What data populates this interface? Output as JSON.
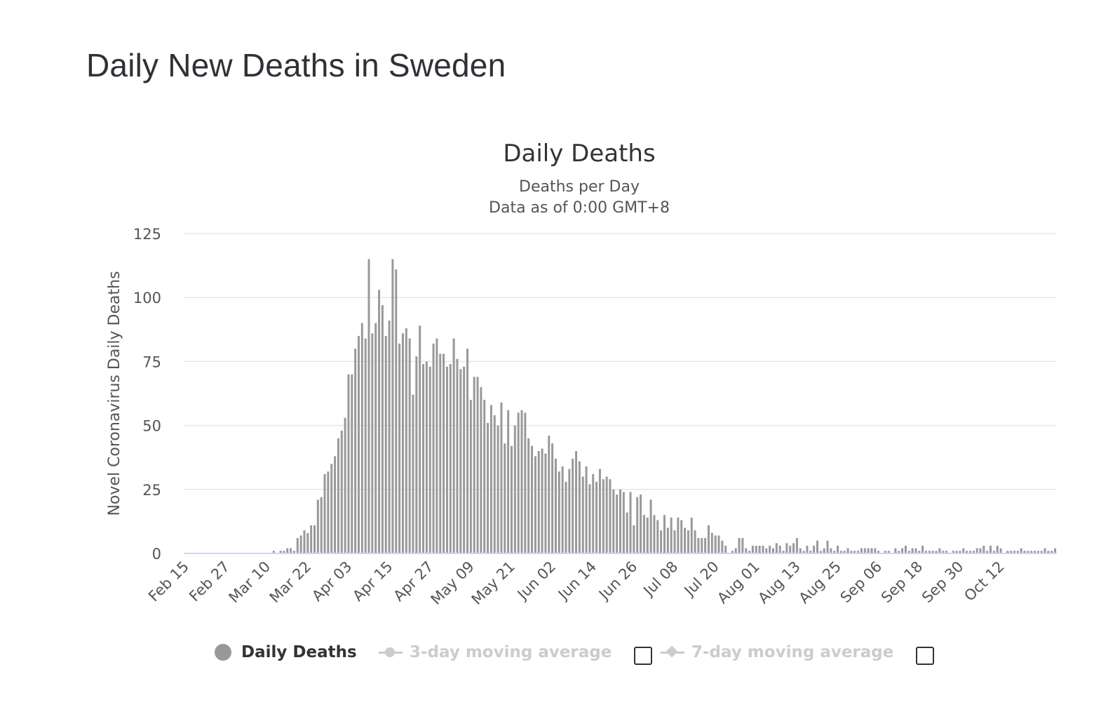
{
  "page_title": "Daily New Deaths in Sweden",
  "chart_data": {
    "type": "bar",
    "title": "Daily Deaths",
    "subtitle_lines": [
      "Deaths per Day",
      "Data as of 0:00 GMT+8"
    ],
    "xlabel": "",
    "ylabel": "Novel Coronavirus Daily Deaths",
    "ylim": [
      0,
      125
    ],
    "yticks": [
      "0",
      "25",
      "50",
      "75",
      "100",
      "125"
    ],
    "xticks": [
      "Feb 15",
      "Feb 27",
      "Mar 10",
      "Mar 22",
      "Apr 03",
      "Apr 15",
      "Apr 27",
      "May 09",
      "May 21",
      "Jun 02",
      "Jun 14",
      "Jun 26",
      "Jul 08",
      "Jul 20",
      "Aug 01",
      "Aug 13",
      "Aug 25",
      "Sep 06",
      "Sep 18",
      "Sep 30",
      "Oct 12"
    ],
    "grid": true,
    "legend_position": "bottom",
    "start_date": "Feb 15",
    "series": [
      {
        "name": "Daily Deaths",
        "color": "#999999",
        "values": [
          0,
          0,
          0,
          0,
          0,
          0,
          0,
          0,
          0,
          0,
          0,
          0,
          0,
          0,
          0,
          0,
          0,
          0,
          0,
          0,
          0,
          0,
          0,
          0,
          0,
          0,
          1,
          0,
          1,
          1,
          2,
          2,
          1,
          6,
          7,
          9,
          8,
          11,
          11,
          21,
          22,
          31,
          32,
          35,
          38,
          45,
          48,
          53,
          70,
          70,
          80,
          85,
          90,
          84,
          115,
          86,
          90,
          103,
          97,
          85,
          91,
          115,
          111,
          82,
          86,
          88,
          84,
          62,
          77,
          89,
          74,
          75,
          73,
          82,
          84,
          78,
          78,
          73,
          74,
          84,
          76,
          72,
          73,
          80,
          60,
          69,
          69,
          65,
          60,
          51,
          58,
          54,
          50,
          59,
          43,
          56,
          42,
          50,
          55,
          56,
          55,
          45,
          42,
          38,
          40,
          41,
          39,
          46,
          43,
          37,
          32,
          34,
          28,
          33,
          37,
          40,
          36,
          30,
          34,
          27,
          31,
          28,
          33,
          29,
          30,
          29,
          25,
          23,
          25,
          24,
          16,
          24,
          11,
          22,
          23,
          15,
          14,
          21,
          15,
          13,
          9,
          15,
          10,
          14,
          9,
          14,
          13,
          10,
          9,
          14,
          9,
          6,
          6,
          6,
          11,
          8,
          7,
          7,
          5,
          3,
          0,
          1,
          2,
          6,
          6,
          2,
          1,
          3,
          3,
          3,
          3,
          2,
          3,
          2,
          4,
          3,
          1,
          4,
          3,
          4,
          6,
          2,
          1,
          3,
          1,
          3,
          5,
          1,
          2,
          5,
          2,
          1,
          3,
          1,
          1,
          2,
          1,
          1,
          1,
          2,
          2,
          2,
          2,
          2,
          1,
          0,
          1,
          1,
          0,
          2,
          1,
          2,
          3,
          1,
          2,
          2,
          1,
          3,
          1,
          1,
          1,
          1,
          2,
          1,
          1,
          0,
          1,
          1,
          1,
          2,
          1,
          1,
          1,
          2,
          2,
          3,
          1,
          3,
          1,
          3,
          2,
          0,
          1,
          1,
          1,
          1,
          2,
          1,
          1,
          1,
          1,
          1,
          1,
          2,
          1,
          1,
          2
        ]
      }
    ]
  },
  "legend": {
    "items": [
      {
        "label": "Daily Deaths",
        "state": "enabled",
        "color": "#999999"
      },
      {
        "label": "3-day moving average",
        "state": "disabled",
        "checked": false
      },
      {
        "label": "7-day moving average",
        "state": "disabled",
        "checked": false
      }
    ]
  }
}
